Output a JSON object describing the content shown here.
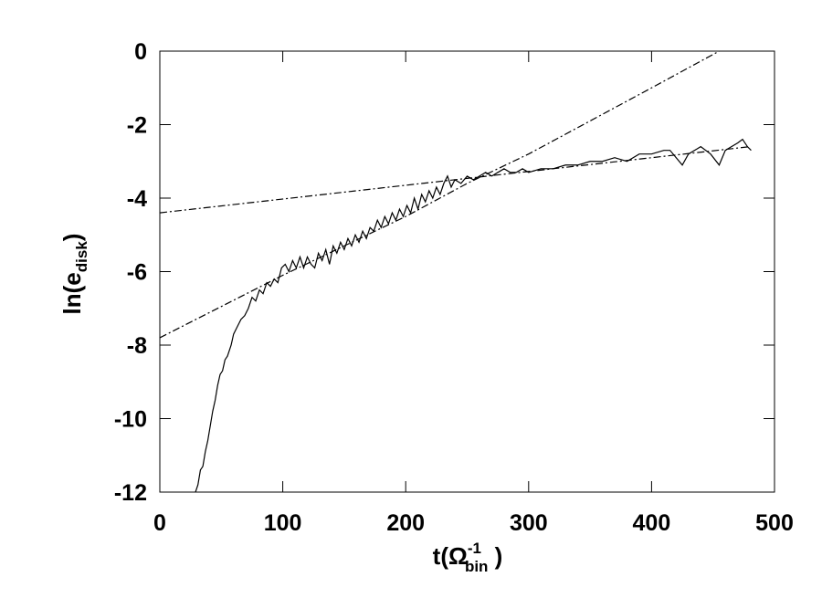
{
  "chart_data": {
    "type": "line",
    "y_label": {
      "main": "ln(e",
      "sub": "disk",
      "end": ")"
    },
    "x_label": {
      "main": "t(Ω",
      "sup": "-1",
      "sub": "bin",
      "end": " )"
    },
    "xlim": [
      0,
      500
    ],
    "ylim": [
      -12,
      0
    ],
    "xticks": [
      0,
      100,
      200,
      300,
      400,
      500
    ],
    "yticks": [
      -12,
      -10,
      -8,
      -6,
      -4,
      -2,
      0
    ],
    "series": [
      {
        "color": "#000000",
        "style": "solid",
        "x": [
          29,
          31,
          33,
          35,
          37,
          39,
          41,
          43,
          45,
          47,
          49,
          51,
          53,
          55,
          58,
          60,
          63,
          66,
          69,
          72,
          75,
          78,
          81,
          84,
          87,
          90,
          93,
          96,
          99,
          102,
          105,
          108,
          111,
          114,
          117,
          120,
          123,
          126,
          129,
          132,
          135,
          138,
          141,
          144,
          147,
          150,
          153,
          156,
          159,
          162,
          165,
          168,
          171,
          174,
          177,
          180,
          183,
          186,
          189,
          192,
          195,
          198,
          201,
          204,
          207,
          210,
          213,
          216,
          219,
          222,
          225,
          228,
          231,
          234,
          237,
          240,
          245,
          250,
          255,
          260,
          265,
          270,
          275,
          280,
          285,
          290,
          295,
          300,
          310,
          320,
          330,
          340,
          350,
          360,
          370,
          380,
          390,
          400,
          410,
          415,
          420,
          425,
          430,
          440,
          448,
          455,
          460,
          465,
          470,
          474,
          478,
          481
        ],
        "values": [
          -12.0,
          -11.8,
          -11.4,
          -11.3,
          -10.9,
          -10.6,
          -10.2,
          -9.8,
          -9.5,
          -9.1,
          -8.8,
          -8.7,
          -8.4,
          -8.3,
          -8.0,
          -7.7,
          -7.5,
          -7.3,
          -7.2,
          -7.0,
          -6.7,
          -6.8,
          -6.5,
          -6.6,
          -6.3,
          -6.4,
          -6.2,
          -6.3,
          -5.9,
          -5.8,
          -6.0,
          -5.7,
          -5.9,
          -5.6,
          -5.9,
          -5.6,
          -5.8,
          -5.9,
          -5.5,
          -5.7,
          -5.4,
          -5.8,
          -5.3,
          -5.5,
          -5.2,
          -5.4,
          -5.1,
          -5.3,
          -5.0,
          -5.2,
          -4.9,
          -5.1,
          -4.8,
          -4.9,
          -4.6,
          -4.8,
          -4.5,
          -4.7,
          -4.4,
          -4.6,
          -4.3,
          -4.5,
          -4.2,
          -4.4,
          -4.0,
          -4.3,
          -3.9,
          -4.1,
          -3.8,
          -4.0,
          -3.7,
          -3.9,
          -3.6,
          -3.4,
          -3.7,
          -3.5,
          -3.6,
          -3.4,
          -3.5,
          -3.4,
          -3.3,
          -3.4,
          -3.3,
          -3.2,
          -3.3,
          -3.3,
          -3.2,
          -3.3,
          -3.2,
          -3.2,
          -3.1,
          -3.1,
          -3.0,
          -3.0,
          -2.9,
          -3.0,
          -2.8,
          -2.8,
          -2.7,
          -2.7,
          -2.9,
          -3.1,
          -2.8,
          -2.6,
          -2.8,
          -3.1,
          -2.7,
          -2.6,
          -2.5,
          -2.4,
          -2.6,
          -2.7
        ]
      },
      {
        "color": "#000000",
        "style": "dashdot",
        "x": [
          0,
          480
        ],
        "values": [
          -4.4,
          -2.6
        ]
      },
      {
        "color": "#000000",
        "style": "dashdot",
        "x": [
          0,
          100,
          200,
          250,
          300,
          350,
          400,
          455
        ],
        "values": [
          -7.8,
          -6.1,
          -4.5,
          -3.6,
          -2.8,
          -1.9,
          -1.0,
          0
        ]
      }
    ]
  }
}
